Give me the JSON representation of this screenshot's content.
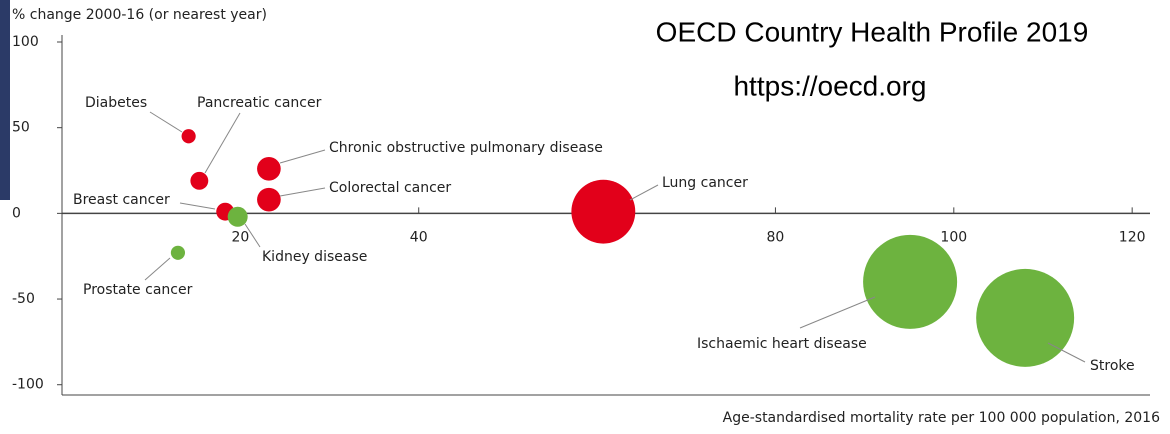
{
  "chart_data": {
    "type": "bubble",
    "overlay": [
      "OECD Country Health Profile 2019",
      "https://oecd.org"
    ],
    "y_label": "% change 2000-16 (or nearest year)",
    "x_label": "Age-standardised mortality rate per 100 000 population, 2016",
    "points": [
      {
        "label": "Diabetes",
        "x": 14.2,
        "y": 45,
        "size": 5,
        "color": "#e2001a"
      },
      {
        "label": "Pancreatic cancer",
        "x": 15.4,
        "y": 19,
        "size": 8,
        "color": "#e2001a"
      },
      {
        "label": "Chronic obstructive pulmonary disease",
        "x": 23.2,
        "y": 26,
        "size": 14,
        "color": "#e2001a"
      },
      {
        "label": "Colorectal cancer",
        "x": 23.2,
        "y": 8,
        "size": 14,
        "color": "#e2001a"
      },
      {
        "label": "Breast cancer",
        "x": 18.3,
        "y": 1,
        "size": 8,
        "color": "#e2001a"
      },
      {
        "label": "Kidney disease",
        "x": 19.7,
        "y": -2,
        "size": 10,
        "color": "#6db33f"
      },
      {
        "label": "Prostate cancer",
        "x": 13,
        "y": -23,
        "size": 5,
        "color": "#6db33f"
      },
      {
        "label": "Lung cancer",
        "x": 60.7,
        "y": 1,
        "size": 102,
        "color": "#e2001a"
      },
      {
        "label": "Ischaemic heart disease",
        "x": 95.1,
        "y": -40,
        "size": 221,
        "color": "#6db33f"
      },
      {
        "label": "Stroke",
        "x": 108,
        "y": -61,
        "size": 240,
        "color": "#6db33f"
      }
    ],
    "xlim": [
      0,
      122
    ],
    "xticks": [
      20,
      40,
      80,
      100,
      120
    ],
    "ylim": [
      -106,
      100
    ],
    "yticks": [
      100,
      50,
      0,
      -50,
      -100
    ]
  }
}
